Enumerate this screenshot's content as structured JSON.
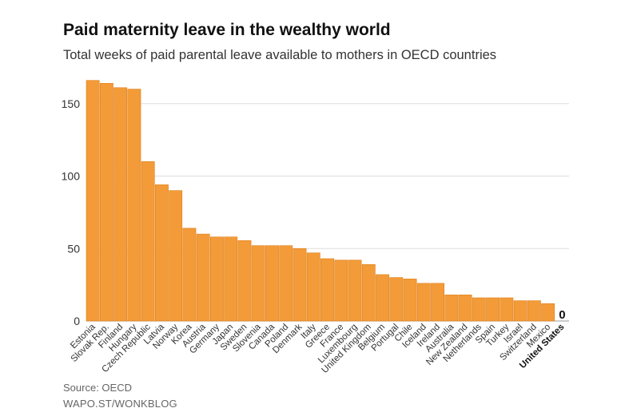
{
  "header": {
    "title": "Paid maternity leave in the wealthy world",
    "subtitle": "Total weeks of paid parental leave available to mothers in OECD countries"
  },
  "footer": {
    "source": "Source: OECD",
    "credit": "WAPO.ST/WONKBLOG"
  },
  "colors": {
    "bar": "#F29B38",
    "bar_edge": "#E07F1A",
    "grid": "#DDDDDD",
    "text": "#333333"
  },
  "chart_data": {
    "type": "bar",
    "title": "Paid maternity leave in the wealthy world",
    "subtitle": "Total weeks of paid parental leave available to mothers in OECD countries",
    "xlabel": "",
    "ylabel": "",
    "ylim": [
      0,
      165
    ],
    "yticks": [
      0,
      50,
      100,
      150
    ],
    "grid": true,
    "highlight": "United States",
    "categories": [
      "Estonia",
      "Slovak Rep.",
      "Finland",
      "Hungary",
      "Czech Republic",
      "Latvia",
      "Norway",
      "Korea",
      "Austria",
      "Germany",
      "Japan",
      "Sweden",
      "Slovenia",
      "Canada",
      "Poland",
      "Denmark",
      "Italy",
      "Greece",
      "France",
      "Luxembourg",
      "United Kingdom",
      "Belgium",
      "Portugal",
      "Chile",
      "Iceland",
      "Ireland",
      "Australia",
      "New Zealand",
      "Netherlands",
      "Spain",
      "Turkey",
      "Israel",
      "Switzerland",
      "Mexico",
      "United States"
    ],
    "values": [
      166,
      164,
      161,
      160,
      110,
      94,
      90,
      64,
      60,
      58,
      58,
      55.5,
      52,
      52,
      52,
      50,
      47,
      43,
      42,
      42,
      39,
      32,
      30,
      29,
      26,
      26,
      18,
      18,
      16,
      16,
      16,
      14,
      14,
      12,
      0
    ],
    "value_labels": [
      {
        "category": "United States",
        "text": "0"
      }
    ]
  }
}
